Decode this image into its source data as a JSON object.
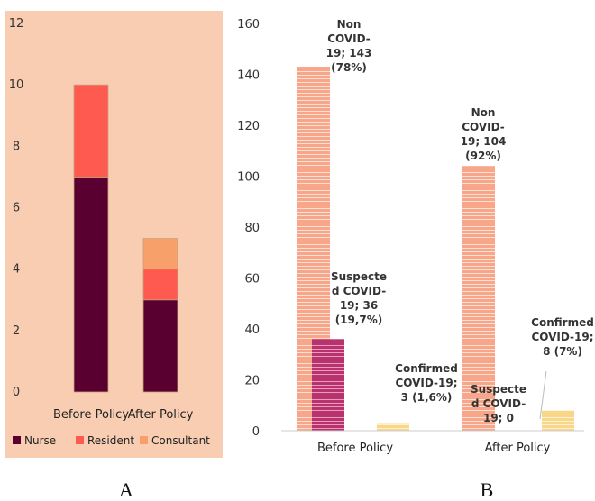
{
  "colors": {
    "panel_bg": "#f8cdb1",
    "nurse": "#5a0030",
    "resident": "#ff5a4f",
    "consultant": "#f7a06a",
    "non_covid": "#f8a68a",
    "suspected": "#b8326e",
    "confirmed": "#f8d68a"
  },
  "chart_data": [
    {
      "type": "bar",
      "stacked": true,
      "panel_label": "A",
      "categories": [
        "Before Policy",
        "After Policy"
      ],
      "series": [
        {
          "name": "Nurse",
          "values": [
            7,
            3
          ]
        },
        {
          "name": "Resident",
          "values": [
            3,
            1
          ]
        },
        {
          "name": "Consultant",
          "values": [
            0,
            1
          ]
        }
      ],
      "ylim": [
        0,
        12
      ],
      "yticks": [
        "0",
        "2",
        "4",
        "6",
        "8",
        "10",
        "12"
      ],
      "legend": "bottom",
      "grid": false
    },
    {
      "type": "bar",
      "panel_label": "B",
      "categories": [
        "Before Policy",
        "After Policy"
      ],
      "series": [
        {
          "name": "Non COVID-19",
          "values": [
            143,
            104
          ]
        },
        {
          "name": "Suspected COVID-19",
          "values": [
            36,
            0
          ]
        },
        {
          "name": "Confirmed COVID-19",
          "values": [
            3,
            8
          ]
        }
      ],
      "ylim": [
        0,
        160
      ],
      "yticks": [
        "0",
        "20",
        "40",
        "60",
        "80",
        "100",
        "120",
        "140",
        "160"
      ],
      "grid": false,
      "data_labels": [
        {
          "series": 0,
          "category": 0,
          "lines": [
            "Non",
            "COVID-",
            "19; 143",
            "(78%)"
          ]
        },
        {
          "series": 1,
          "category": 0,
          "lines": [
            "Suspecte",
            "d COVID-",
            "19; 36",
            "(19,7%)"
          ]
        },
        {
          "series": 2,
          "category": 0,
          "lines": [
            "Confirmed",
            "COVID-19;",
            "3 (1,6%)"
          ]
        },
        {
          "series": 0,
          "category": 1,
          "lines": [
            "Non",
            "COVID-",
            "19; 104",
            "(92%)"
          ]
        },
        {
          "series": 1,
          "category": 1,
          "lines": [
            "Suspecte",
            "d COVID-",
            "19; 0"
          ]
        },
        {
          "series": 2,
          "category": 1,
          "lines": [
            "Confirmed",
            "COVID-19;",
            "8 (7%)"
          ]
        }
      ]
    }
  ]
}
